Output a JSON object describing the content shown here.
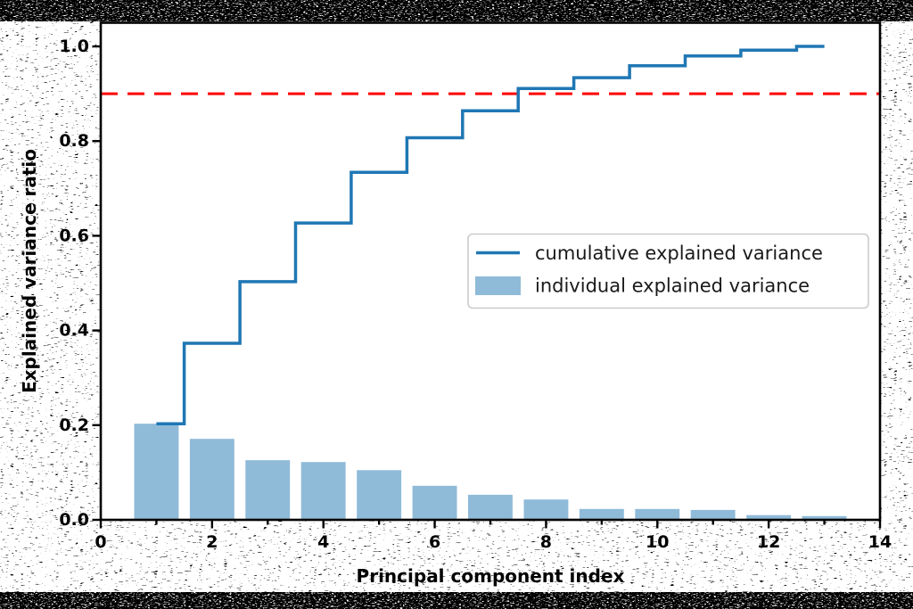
{
  "figure": {
    "background_style": "black-white dither noise",
    "plot_bg": "#ffffff",
    "frame_color": "#000000"
  },
  "chart_data": {
    "type": "combo",
    "title": "",
    "xlabel": "Principal component index",
    "ylabel": "Explained variance ratio",
    "x": [
      1,
      2,
      3,
      4,
      5,
      6,
      7,
      8,
      9,
      10,
      11,
      12,
      13
    ],
    "series": [
      {
        "name": "cumulative explained variance",
        "kind": "step",
        "step_where": "mid",
        "color": "#1f77b4",
        "values": [
          0.203,
          0.373,
          0.503,
          0.627,
          0.734,
          0.807,
          0.864,
          0.911,
          0.934,
          0.959,
          0.98,
          0.992,
          1.0
        ]
      },
      {
        "name": "individual explained variance",
        "kind": "bar",
        "bar_width": 0.8,
        "color": "#8fbbd9",
        "values": [
          0.203,
          0.171,
          0.126,
          0.122,
          0.105,
          0.072,
          0.053,
          0.043,
          0.023,
          0.023,
          0.021,
          0.01,
          0.008
        ]
      }
    ],
    "threshold_line": {
      "value": 0.9,
      "color": "#ff0000",
      "style": "dashed"
    },
    "xlim": [
      0,
      14
    ],
    "ylim": [
      0,
      1.05
    ],
    "x_major_ticks": {
      "values": [
        0,
        2,
        4,
        6,
        8,
        10,
        12,
        14
      ],
      "labels": [
        "0",
        "2",
        "4",
        "6",
        "8",
        "10",
        "12",
        "14"
      ]
    },
    "x_minor_ticks": [
      1,
      3,
      5,
      7,
      9,
      11,
      13
    ],
    "y_major_ticks": {
      "values": [
        0,
        0.2,
        0.4,
        0.6,
        0.8,
        1.0
      ],
      "labels": [
        "0.0",
        "0.2",
        "0.4",
        "0.6",
        "0.8",
        "1.0"
      ]
    },
    "grid": false,
    "legend": {
      "position": "center-right"
    },
    "axis_text_color": "#000000",
    "legend_text_color": "#1a1a1a",
    "legend_border_color": "#cccccc"
  }
}
